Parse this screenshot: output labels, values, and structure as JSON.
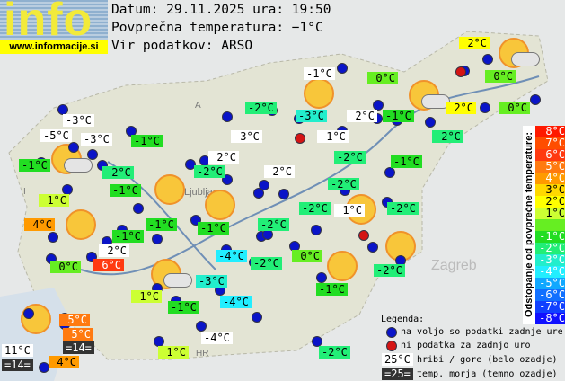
{
  "header": {
    "logo_text": "info",
    "logo_url": "www.informacije.si",
    "date_line": "Datum: 29.11.2025 ura: 19:50",
    "avg_line": "Povprečna temperatura: −1°C",
    "source_line": "Vir podatkov: ARSO"
  },
  "map_labels": [
    "Ljubljana",
    "Zagreb",
    "HR",
    "I",
    "A"
  ],
  "colors": {
    "white": "#ffffff",
    "dark": "#333333",
    "c8": "#ff1a00",
    "c7": "#ff4d00",
    "c6": "#ff3a10",
    "c5": "#ff7a10",
    "c4": "#ff9a00",
    "c3": "#ffd800",
    "c2": "#ffff00",
    "c1": "#ccff33",
    "c0": "#66ee22",
    "m1": "#22dd22",
    "m2": "#22ee77",
    "m3": "#22eecc",
    "m4": "#22eeff",
    "m5": "#10a8ff",
    "m6": "#1070ff",
    "m7": "#1040ff",
    "m8": "#1010ff"
  },
  "stations": [
    {
      "text": "-3°C",
      "bg": "white"
    },
    {
      "text": "-5°C",
      "bg": "white"
    },
    {
      "text": "-3°C",
      "bg": "white"
    },
    {
      "text": "-1°C",
      "bg": "m1"
    },
    {
      "text": "-1°C",
      "bg": "m1"
    },
    {
      "text": "-2°C",
      "bg": "m2"
    },
    {
      "text": "-1°C",
      "bg": "m1"
    },
    {
      "text": "1°C",
      "bg": "c1"
    },
    {
      "text": "4°C",
      "bg": "c4"
    },
    {
      "text": "-1°C",
      "bg": "m1"
    },
    {
      "text": "-1°C",
      "bg": "m1"
    },
    {
      "text": "2°C",
      "bg": "white"
    },
    {
      "text": "0°C",
      "bg": "c0"
    },
    {
      "text": "6°C",
      "bg": "c6"
    },
    {
      "text": "-2°C",
      "bg": "m2"
    },
    {
      "text": "-3°C",
      "bg": "m3"
    },
    {
      "text": "-1°C",
      "bg": "white"
    },
    {
      "text": "0°C",
      "bg": "c0"
    },
    {
      "text": "2°C",
      "bg": "white"
    },
    {
      "text": "-1°C",
      "bg": "m1"
    },
    {
      "text": "-3°C",
      "bg": "white"
    },
    {
      "text": "-1°C",
      "bg": "white"
    },
    {
      "text": "-2°C",
      "bg": "m2"
    },
    {
      "text": "-2°C",
      "bg": "m2"
    },
    {
      "text": "2°C",
      "bg": "white"
    },
    {
      "text": "-2°C",
      "bg": "m2"
    },
    {
      "text": "2°C",
      "bg": "white"
    },
    {
      "text": "-1°C",
      "bg": "m1"
    },
    {
      "text": "-2°C",
      "bg": "m2"
    },
    {
      "text": "-2°C",
      "bg": "m2"
    },
    {
      "text": "1°C",
      "bg": "white"
    },
    {
      "text": "-2°C",
      "bg": "m2"
    },
    {
      "text": "-2°C",
      "bg": "m2"
    },
    {
      "text": "-1°C",
      "bg": "m1"
    },
    {
      "text": "2°C",
      "bg": "c2"
    },
    {
      "text": "0°C",
      "bg": "c0"
    },
    {
      "text": "2°C",
      "bg": "c2"
    },
    {
      "text": "0°C",
      "bg": "c0"
    },
    {
      "text": "-4°C",
      "bg": "m4"
    },
    {
      "text": "-2°C",
      "bg": "m2"
    },
    {
      "text": "0°C",
      "bg": "c0"
    },
    {
      "text": "-3°C",
      "bg": "m3"
    },
    {
      "text": "1°C",
      "bg": "c1"
    },
    {
      "text": "-1°C",
      "bg": "m1"
    },
    {
      "text": "-4°C",
      "bg": "m4"
    },
    {
      "text": "-1°C",
      "bg": "m1"
    },
    {
      "text": "-2°C",
      "bg": "m2"
    },
    {
      "text": "5°C",
      "bg": "c5"
    },
    {
      "text": "5°C",
      "bg": "c5"
    },
    {
      "text": "=14=",
      "bg": "dark"
    },
    {
      "text": "11°C",
      "bg": "white"
    },
    {
      "text": "=14=",
      "bg": "dark"
    },
    {
      "text": "4°C",
      "bg": "c4"
    },
    {
      "text": "1°C",
      "bg": "c1"
    },
    {
      "text": "-4°C",
      "bg": "white"
    },
    {
      "text": "-2°C",
      "bg": "m2"
    }
  ],
  "scale": {
    "title": "Odstopanje od povprečne temperature:",
    "rows": [
      {
        "text": "8°C",
        "bg": "c8"
      },
      {
        "text": "7°C",
        "bg": "c7"
      },
      {
        "text": "6°C",
        "bg": "c6"
      },
      {
        "text": "5°C",
        "bg": "c5"
      },
      {
        "text": "4°C",
        "bg": "c4"
      },
      {
        "text": "3°C",
        "bg": "c3"
      },
      {
        "text": "2°C",
        "bg": "c2"
      },
      {
        "text": "1°C",
        "bg": "c1"
      },
      {
        "text": "",
        "bg": "c0"
      },
      {
        "text": "-1°C",
        "bg": "m1"
      },
      {
        "text": "-2°C",
        "bg": "m2"
      },
      {
        "text": "-3°C",
        "bg": "m3"
      },
      {
        "text": "-4°C",
        "bg": "m4"
      },
      {
        "text": "-5°C",
        "bg": "m5"
      },
      {
        "text": "-6°C",
        "bg": "m6"
      },
      {
        "text": "-7°C",
        "bg": "m7"
      },
      {
        "text": "-8°C",
        "bg": "m8"
      }
    ]
  },
  "legend": {
    "title": "Legenda:",
    "blue_dot": "na voljo so podatki zadnje ure",
    "red_dot": "ni podatka za zadnjo uro",
    "hill_sample": "25°C",
    "hill_text": "hribi / gore (belo ozadje)",
    "sea_sample": "=25=",
    "sea_text": "temp. morja (temno ozadje)"
  }
}
